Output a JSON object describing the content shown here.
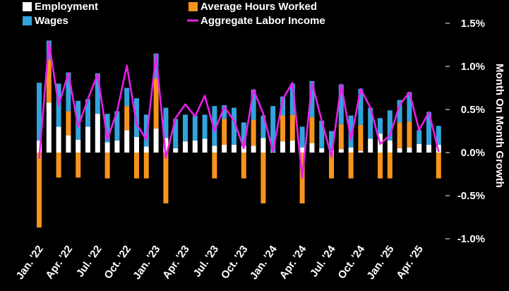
{
  "chart_data": {
    "type": "bar",
    "title": "",
    "xlabel": "",
    "ylabel": "Month On Month Growth",
    "ylim": [
      -1.0,
      1.5
    ],
    "y_ticks": [
      {
        "value": 1.5,
        "label": "1.5%"
      },
      {
        "value": 1.0,
        "label": "1.0%"
      },
      {
        "value": 0.5,
        "label": "0.5%"
      },
      {
        "value": 0.0,
        "label": "0.0%"
      },
      {
        "value": -0.5,
        "label": "-0.5%"
      },
      {
        "value": -1.0,
        "label": "-1.0%"
      }
    ],
    "x_ticks": [
      {
        "index": 0,
        "label": "Jan. '22"
      },
      {
        "index": 3,
        "label": "Apr. '22"
      },
      {
        "index": 6,
        "label": "Jul. '22"
      },
      {
        "index": 9,
        "label": "Oct. '22"
      },
      {
        "index": 12,
        "label": "Jan. '23"
      },
      {
        "index": 15,
        "label": "Apr. '23"
      },
      {
        "index": 18,
        "label": "Jul. '23"
      },
      {
        "index": 21,
        "label": "Oct. '23"
      },
      {
        "index": 24,
        "label": "Jan. '24"
      },
      {
        "index": 27,
        "label": "Apr. '24"
      },
      {
        "index": 30,
        "label": "Jul. '24"
      },
      {
        "index": 33,
        "label": "Oct. '24"
      },
      {
        "index": 36,
        "label": "Jan. '25"
      },
      {
        "index": 39,
        "label": "Apr. '25"
      }
    ],
    "grid": false,
    "legend_position": "top-left",
    "stacked": true,
    "series": [
      {
        "name": "Employment",
        "type": "bar",
        "color": "#ffffff",
        "values": [
          0.14,
          0.58,
          0.3,
          0.2,
          0.15,
          0.3,
          0.45,
          0.12,
          0.14,
          0.26,
          0.18,
          0.07,
          0.28,
          0.17,
          0.05,
          0.13,
          0.14,
          0.16,
          0.08,
          0.09,
          0.09,
          0.08,
          0.08,
          0.17,
          0.01,
          0.13,
          0.14,
          0.06,
          0.11,
          0.05,
          0.02,
          0.04,
          0.06,
          0.02,
          0.16,
          0.22,
          0.14,
          0.05,
          0.06,
          0.1,
          0.09,
          0.09
        ]
      },
      {
        "name": "Average Hours Worked",
        "type": "bar",
        "color": "#f7941d",
        "values": [
          -0.87,
          0.5,
          -0.29,
          0.28,
          -0.29,
          0.0,
          0.0,
          -0.3,
          0.0,
          0.28,
          -0.3,
          -0.3,
          0.58,
          -0.59,
          0.0,
          0.0,
          0.0,
          0.0,
          -0.3,
          0.3,
          0.0,
          -0.3,
          0.3,
          -0.59,
          0.0,
          0.3,
          0.3,
          -0.59,
          0.3,
          0.0,
          -0.3,
          0.29,
          -0.3,
          0.3,
          0.0,
          -0.3,
          -0.3,
          0.3,
          0.3,
          0.0,
          0.0,
          -0.3
        ]
      },
      {
        "name": "Wages",
        "type": "bar",
        "color": "#33a3dc",
        "values": [
          0.67,
          0.22,
          0.5,
          0.45,
          0.45,
          0.32,
          0.47,
          0.33,
          0.34,
          0.21,
          0.45,
          0.37,
          0.29,
          0.35,
          0.34,
          0.31,
          0.29,
          0.28,
          0.46,
          0.16,
          0.43,
          0.27,
          0.35,
          0.26,
          0.53,
          0.22,
          0.36,
          0.24,
          0.42,
          0.32,
          0.23,
          0.46,
          0.37,
          0.42,
          0.36,
          0.18,
          0.35,
          0.26,
          0.34,
          0.16,
          0.38,
          0.22
        ]
      },
      {
        "name": "Aggregate Labor Income",
        "type": "line",
        "color": "#e81ee8",
        "values": [
          -0.07,
          1.28,
          0.55,
          0.92,
          0.3,
          0.62,
          0.91,
          0.15,
          0.48,
          1.01,
          0.33,
          0.15,
          1.14,
          -0.06,
          0.4,
          0.56,
          0.42,
          0.66,
          0.25,
          0.53,
          0.37,
          0.05,
          0.73,
          0.45,
          0.01,
          0.62,
          0.81,
          -0.29,
          0.81,
          0.37,
          -0.05,
          0.79,
          0.15,
          0.74,
          0.52,
          0.1,
          0.2,
          0.55,
          0.7,
          0.26,
          0.47,
          0.01
        ]
      }
    ]
  }
}
